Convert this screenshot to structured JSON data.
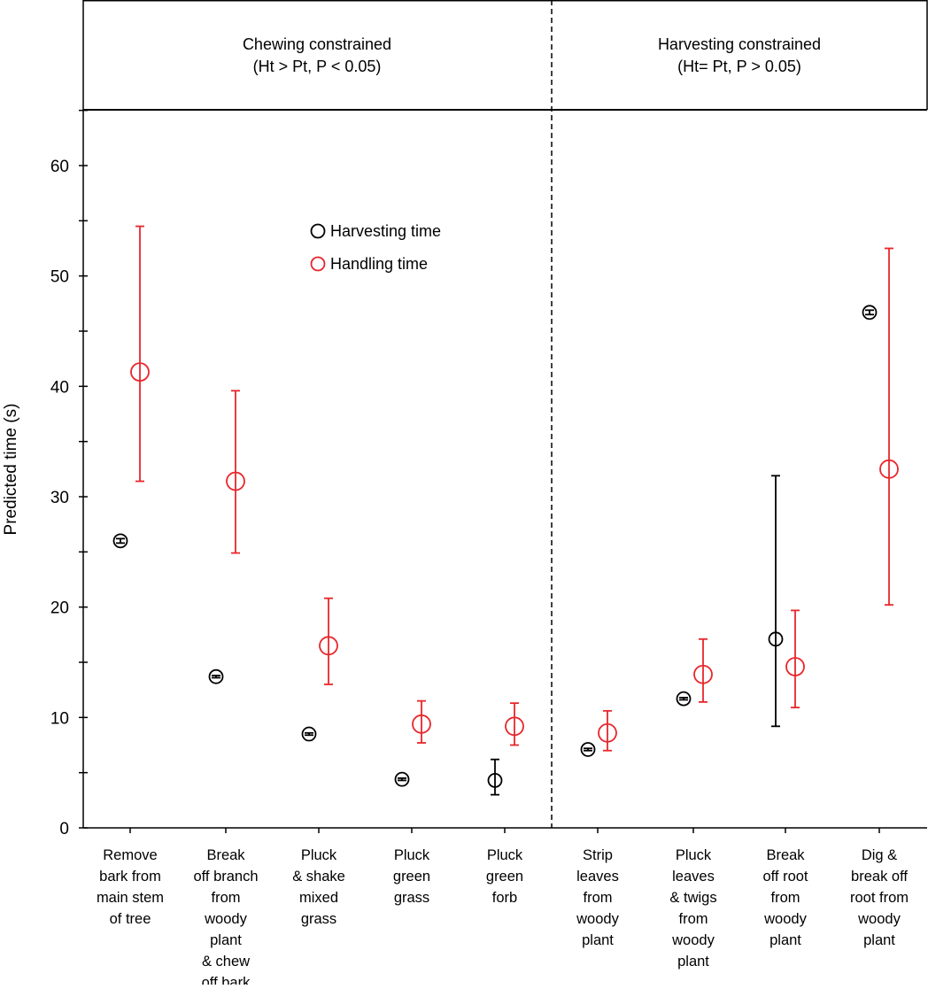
{
  "chart_data": {
    "type": "scatter",
    "ylabel": "Predicted time (s)",
    "ylim": [
      0,
      65
    ],
    "yticks": [
      0,
      10,
      20,
      30,
      40,
      50,
      60
    ],
    "grid": false,
    "legend_placement": "upper-left-center",
    "panels": [
      {
        "title": "Chewing constrained",
        "subtitle": "(Ht > Pt, P < 0.05)"
      },
      {
        "title": "Harvesting constrained",
        "subtitle": "(Ht= Pt, P > 0.05)"
      }
    ],
    "categories": [
      [
        "Remove",
        "bark from",
        "main stem",
        "of tree"
      ],
      [
        "Break",
        "off branch",
        "from",
        "woody",
        "plant",
        "& chew",
        "off bark"
      ],
      [
        "Pluck",
        "& shake",
        "mixed",
        "grass"
      ],
      [
        "Pluck",
        "green",
        "grass"
      ],
      [
        "Pluck",
        "green",
        "forb"
      ],
      [
        "Strip",
        "leaves",
        "from",
        "woody",
        "plant"
      ],
      [
        "Pluck",
        "leaves",
        "& twigs",
        "from",
        "woody",
        "plant"
      ],
      [
        "Break",
        "off root",
        "from",
        "woody",
        "plant"
      ],
      [
        "Dig &",
        "break off",
        "root from",
        "woody",
        "plant"
      ]
    ],
    "series": [
      {
        "name": "Harvesting time",
        "color": "#000000",
        "values": [
          26.0,
          13.7,
          8.5,
          4.4,
          4.3,
          7.1,
          11.7,
          17.1,
          46.7
        ],
        "lower": [
          25.8,
          13.6,
          8.4,
          4.3,
          3.0,
          7.0,
          11.6,
          9.2,
          46.5
        ],
        "upper": [
          26.2,
          13.8,
          8.6,
          4.5,
          6.2,
          7.2,
          11.8,
          31.9,
          46.9
        ]
      },
      {
        "name": "Handling time",
        "color": "#e8262b",
        "values": [
          41.3,
          31.4,
          16.5,
          9.4,
          9.2,
          8.6,
          13.9,
          14.6,
          32.5
        ],
        "lower": [
          31.4,
          24.9,
          13.0,
          7.7,
          7.5,
          7.0,
          11.4,
          10.9,
          20.2
        ],
        "upper": [
          54.5,
          39.6,
          20.8,
          11.5,
          11.3,
          10.6,
          17.1,
          19.7,
          52.5
        ]
      }
    ]
  }
}
